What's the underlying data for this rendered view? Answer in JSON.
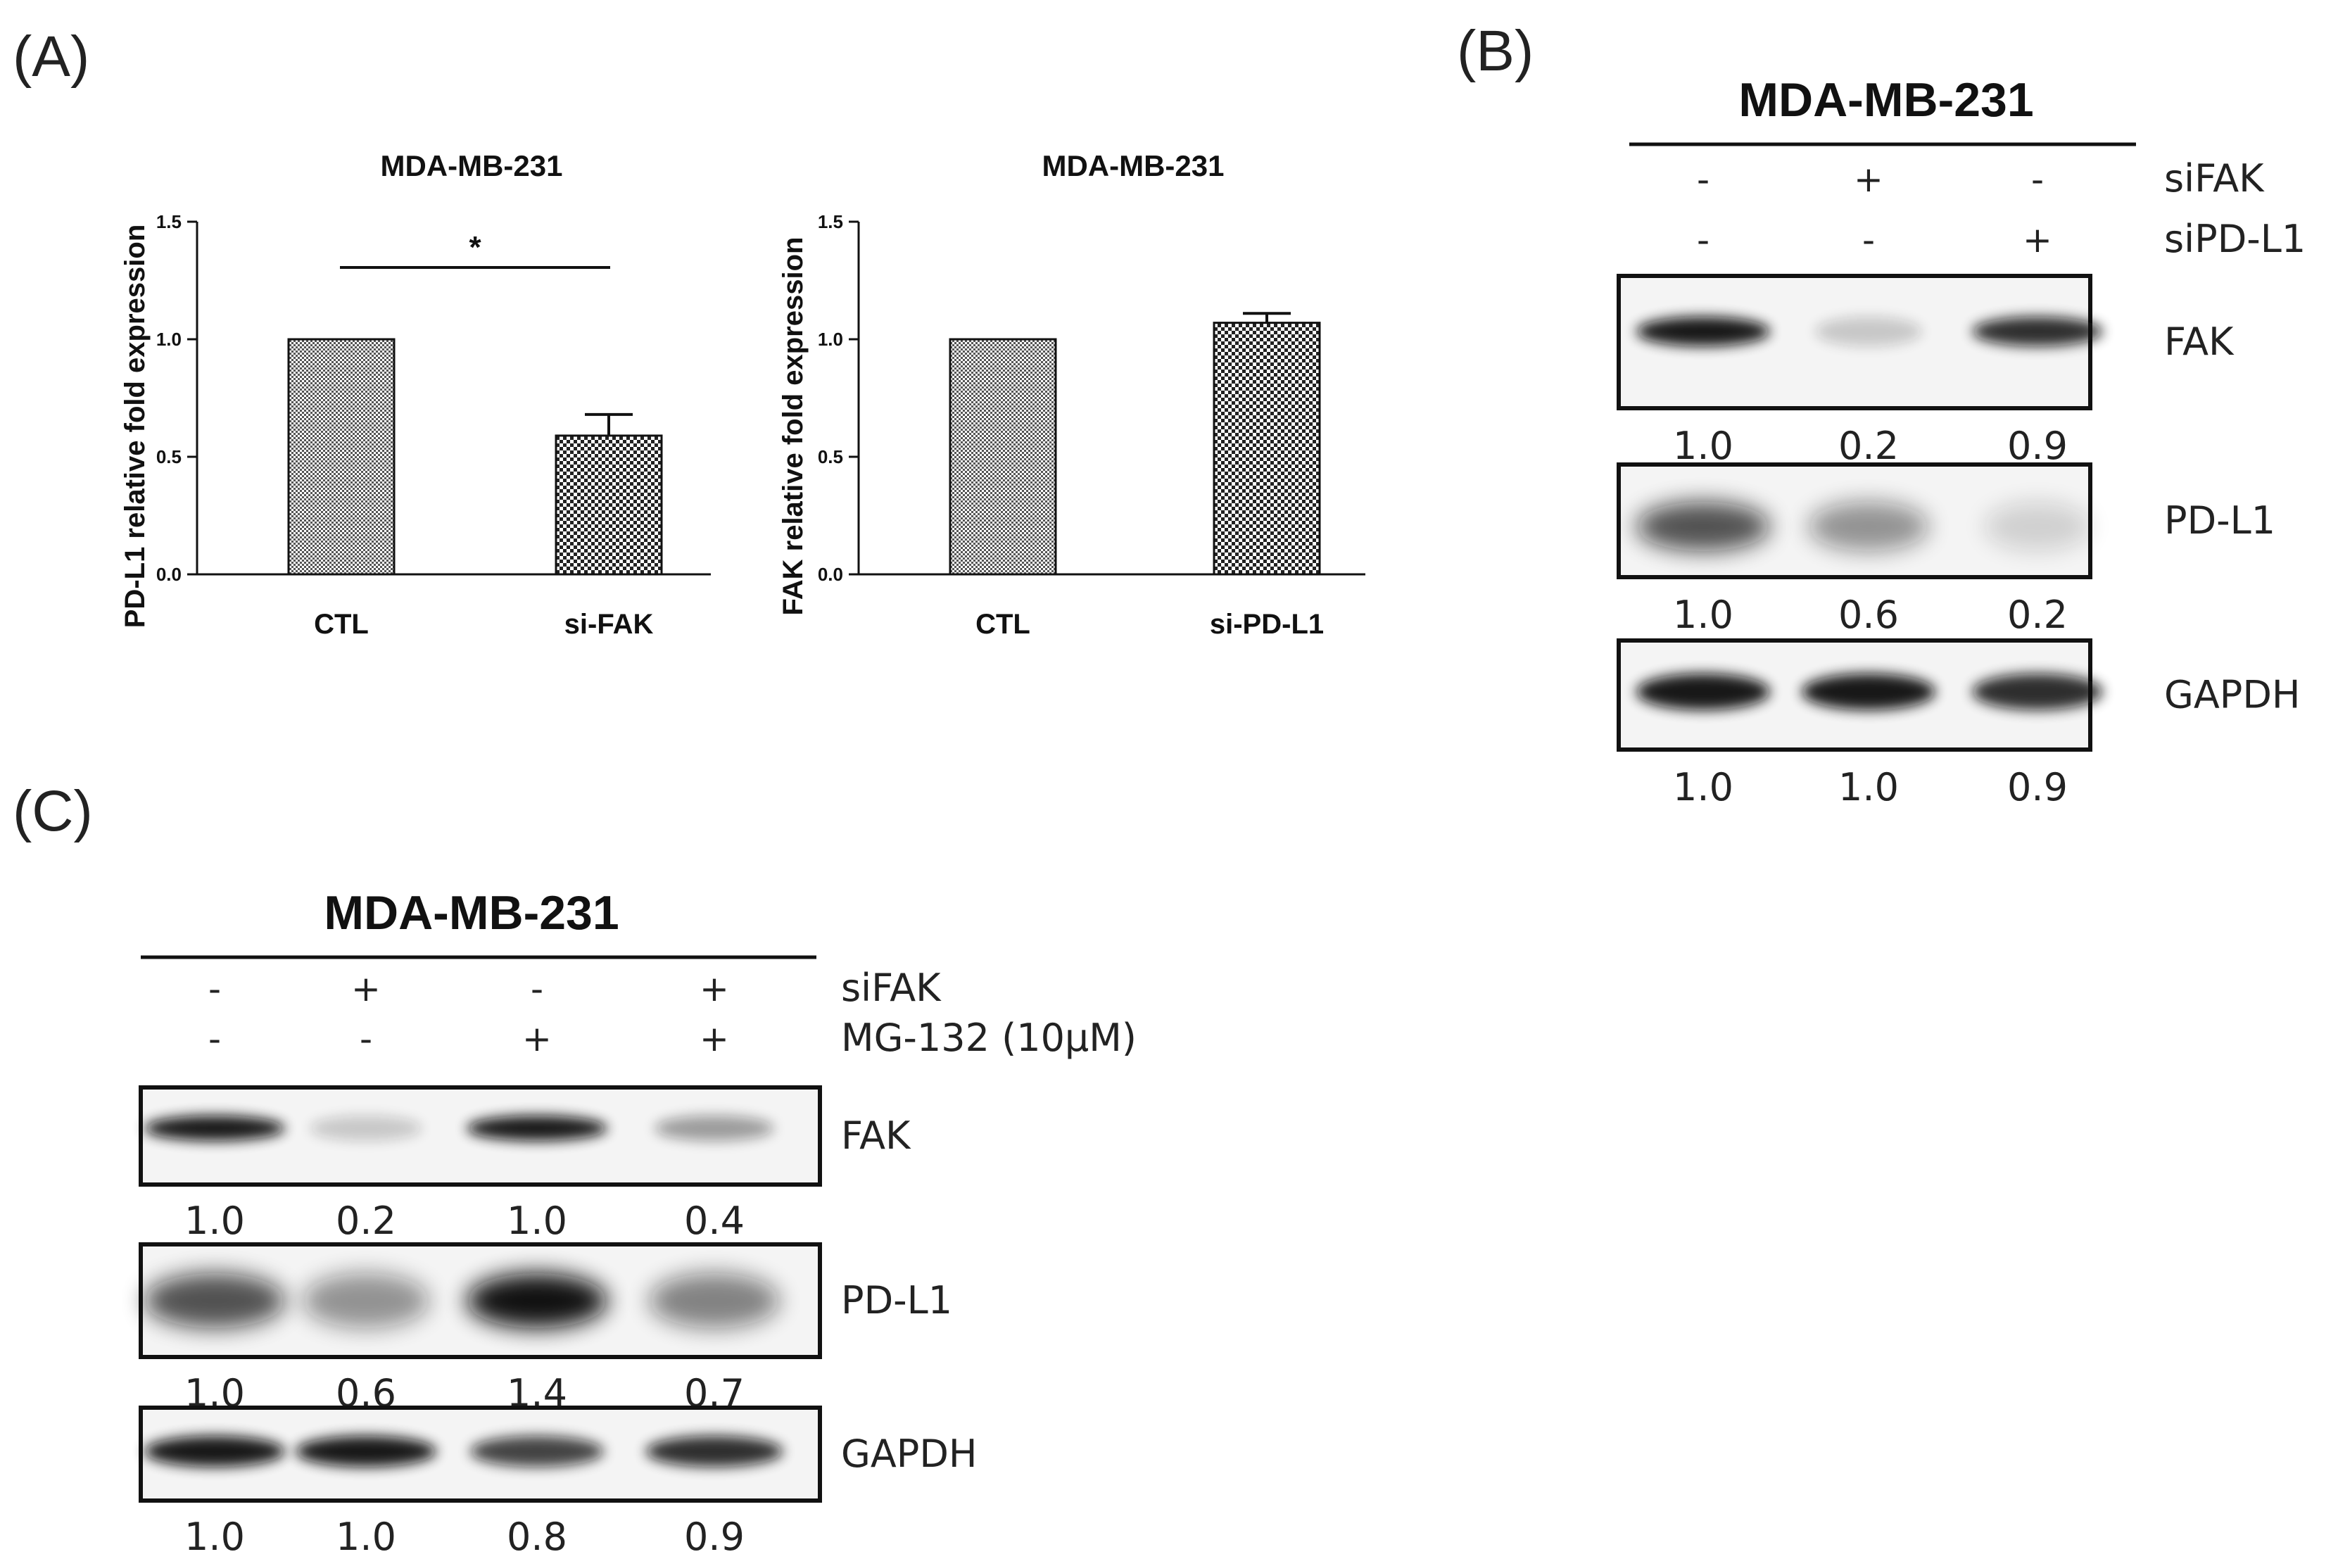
{
  "panel_labels": {
    "a": "(A)",
    "b": "(B)",
    "c": "(C)"
  },
  "chart_data": [
    {
      "type": "bar",
      "title": "MDA-MB-231",
      "ylabel": "PD-L1 relative fold expression",
      "xlabel": "",
      "categories": [
        "CTL",
        "si-FAK"
      ],
      "values": [
        1.0,
        0.59
      ],
      "error": [
        0,
        0.09
      ],
      "ylim": [
        0,
        1.5
      ],
      "yticks": [
        "0.0",
        "0.5",
        "1.0",
        "1.5"
      ],
      "significance": "*",
      "grid": false
    },
    {
      "type": "bar",
      "title": "MDA-MB-231",
      "ylabel": "FAK relative fold expression",
      "xlabel": "",
      "categories": [
        "CTL",
        "si-PD-L1"
      ],
      "values": [
        1.0,
        1.07
      ],
      "error": [
        0,
        0.04
      ],
      "ylim": [
        0,
        1.5
      ],
      "yticks": [
        "0.0",
        "0.5",
        "1.0",
        "1.5"
      ],
      "grid": false
    }
  ],
  "blot_b": {
    "title": "MDA-MB-231",
    "conditions": [
      {
        "label": "siFAK",
        "signs": [
          "-",
          "+",
          "-"
        ]
      },
      {
        "label": "siPD-L1",
        "signs": [
          "-",
          "-",
          "+"
        ]
      }
    ],
    "bands": [
      {
        "label": "FAK",
        "values": [
          "1.0",
          "0.2",
          "0.9"
        ],
        "intensity": [
          1.0,
          0.2,
          0.9
        ]
      },
      {
        "label": "PD-L1",
        "values": [
          "1.0",
          "0.6",
          "0.2"
        ],
        "intensity": [
          1.0,
          0.6,
          0.2
        ]
      },
      {
        "label": "GAPDH",
        "values": [
          "1.0",
          "1.0",
          "0.9"
        ],
        "intensity": [
          1.0,
          1.0,
          0.9
        ]
      }
    ]
  },
  "blot_c": {
    "title": "MDA-MB-231",
    "conditions": [
      {
        "label": "siFAK",
        "signs": [
          "-",
          "+",
          "-",
          "+"
        ]
      },
      {
        "label": "MG-132 (10μM)",
        "signs": [
          "-",
          "-",
          "+",
          "+"
        ]
      }
    ],
    "bands": [
      {
        "label": "FAK",
        "values": [
          "1.0",
          "0.2",
          "1.0",
          "0.4"
        ],
        "intensity": [
          1.0,
          0.2,
          1.0,
          0.4
        ]
      },
      {
        "label": "PD-L1",
        "values": [
          "1.0",
          "0.6",
          "1.4",
          "0.7"
        ],
        "intensity": [
          1.0,
          0.6,
          1.4,
          0.7
        ]
      },
      {
        "label": "GAPDH",
        "values": [
          "1.0",
          "1.0",
          "0.8",
          "0.9"
        ],
        "intensity": [
          1.0,
          1.0,
          0.8,
          0.9
        ]
      }
    ]
  }
}
